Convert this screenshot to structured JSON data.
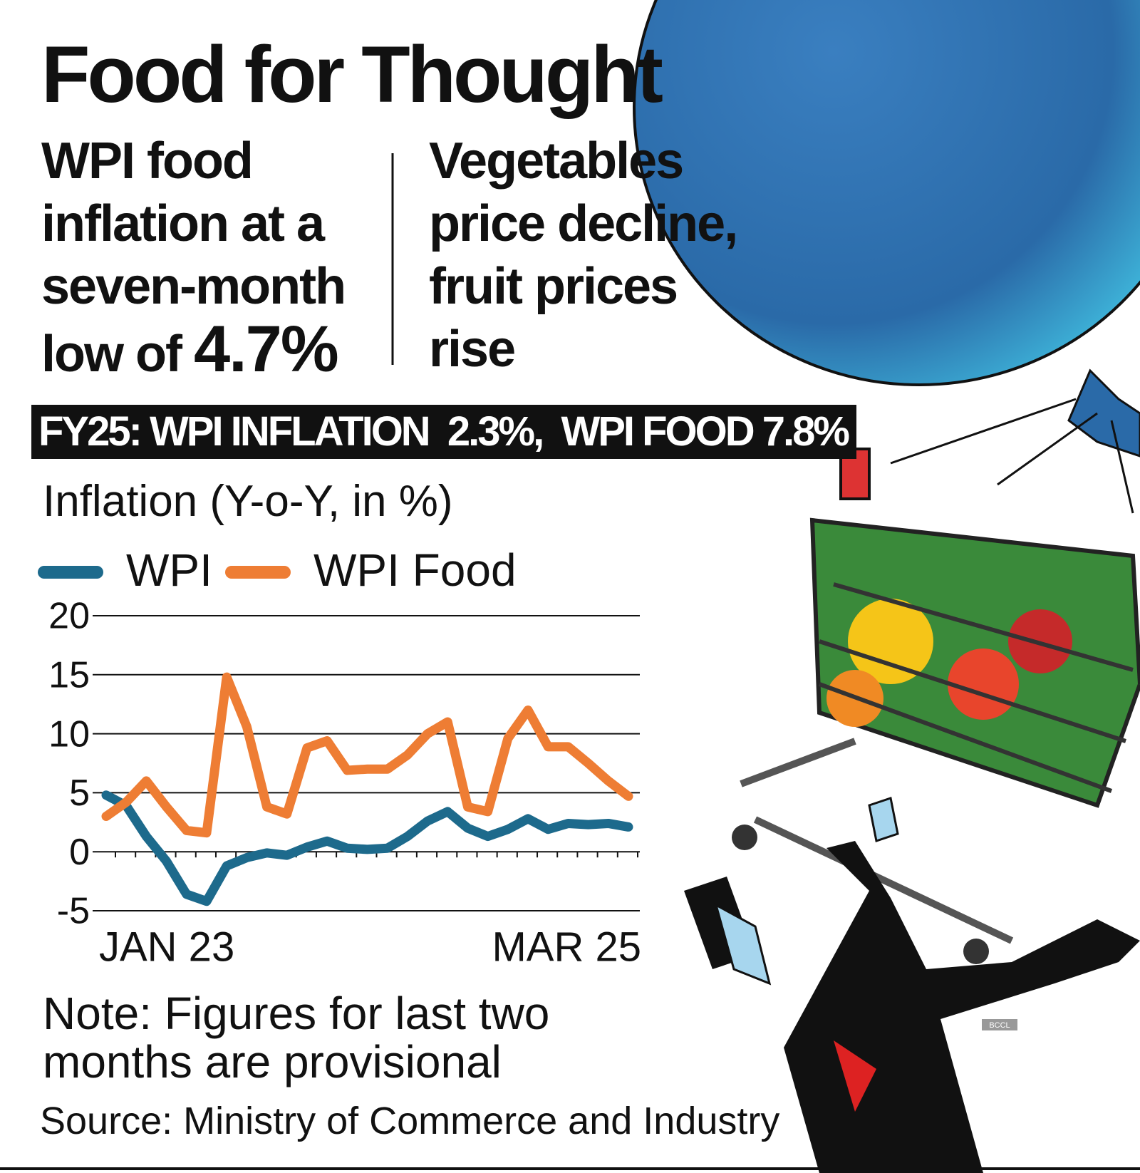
{
  "header": {
    "title": "Food for Thought",
    "left_text": "WPI food inflation at a seven-month low of ",
    "left_highlight": "4.7%",
    "right_text": "Vegetables price decline, fruit prices rise",
    "banner": "FY25: WPI INFLATION  2.3%,  WPI FOOD 7.8%"
  },
  "chart_data": {
    "type": "line",
    "y_label": "Inflation (Y-o-Y, in %)",
    "categories": [
      "JAN 23",
      null,
      null,
      null,
      null,
      null,
      null,
      null,
      null,
      null,
      null,
      null,
      null,
      null,
      null,
      null,
      null,
      null,
      null,
      null,
      null,
      null,
      null,
      null,
      null,
      null,
      "MAR 25"
    ],
    "series": [
      {
        "name": "WPI",
        "color": "#1d6a8c",
        "values": [
          4.8,
          3.9,
          1.3,
          -0.8,
          -3.6,
          -4.2,
          -1.2,
          -0.5,
          -0.1,
          -0.3,
          0.4,
          0.9,
          0.3,
          0.2,
          0.3,
          1.3,
          2.6,
          3.4,
          2.0,
          1.3,
          1.9,
          2.8,
          1.9,
          2.4,
          2.3,
          2.4,
          2.1
        ]
      },
      {
        "name": "WPI Food",
        "color": "#ee7d34",
        "values": [
          3.0,
          4.2,
          6.0,
          3.8,
          1.8,
          1.6,
          14.8,
          10.6,
          3.8,
          3.2,
          8.8,
          9.4,
          6.9,
          7.0,
          7.0,
          8.2,
          10.0,
          11.0,
          3.8,
          3.4,
          9.6,
          12.0,
          8.9,
          8.9,
          7.5,
          6.0,
          4.7
        ]
      }
    ],
    "ylim": [
      -5,
      20
    ],
    "yticks": [
      -5,
      0,
      5,
      10,
      15,
      20
    ],
    "grid": true
  },
  "footer": {
    "note": "Note: Figures for last two months are provisional",
    "source": "Source: Ministry of Commerce and Industry",
    "credit": "BCCL"
  }
}
